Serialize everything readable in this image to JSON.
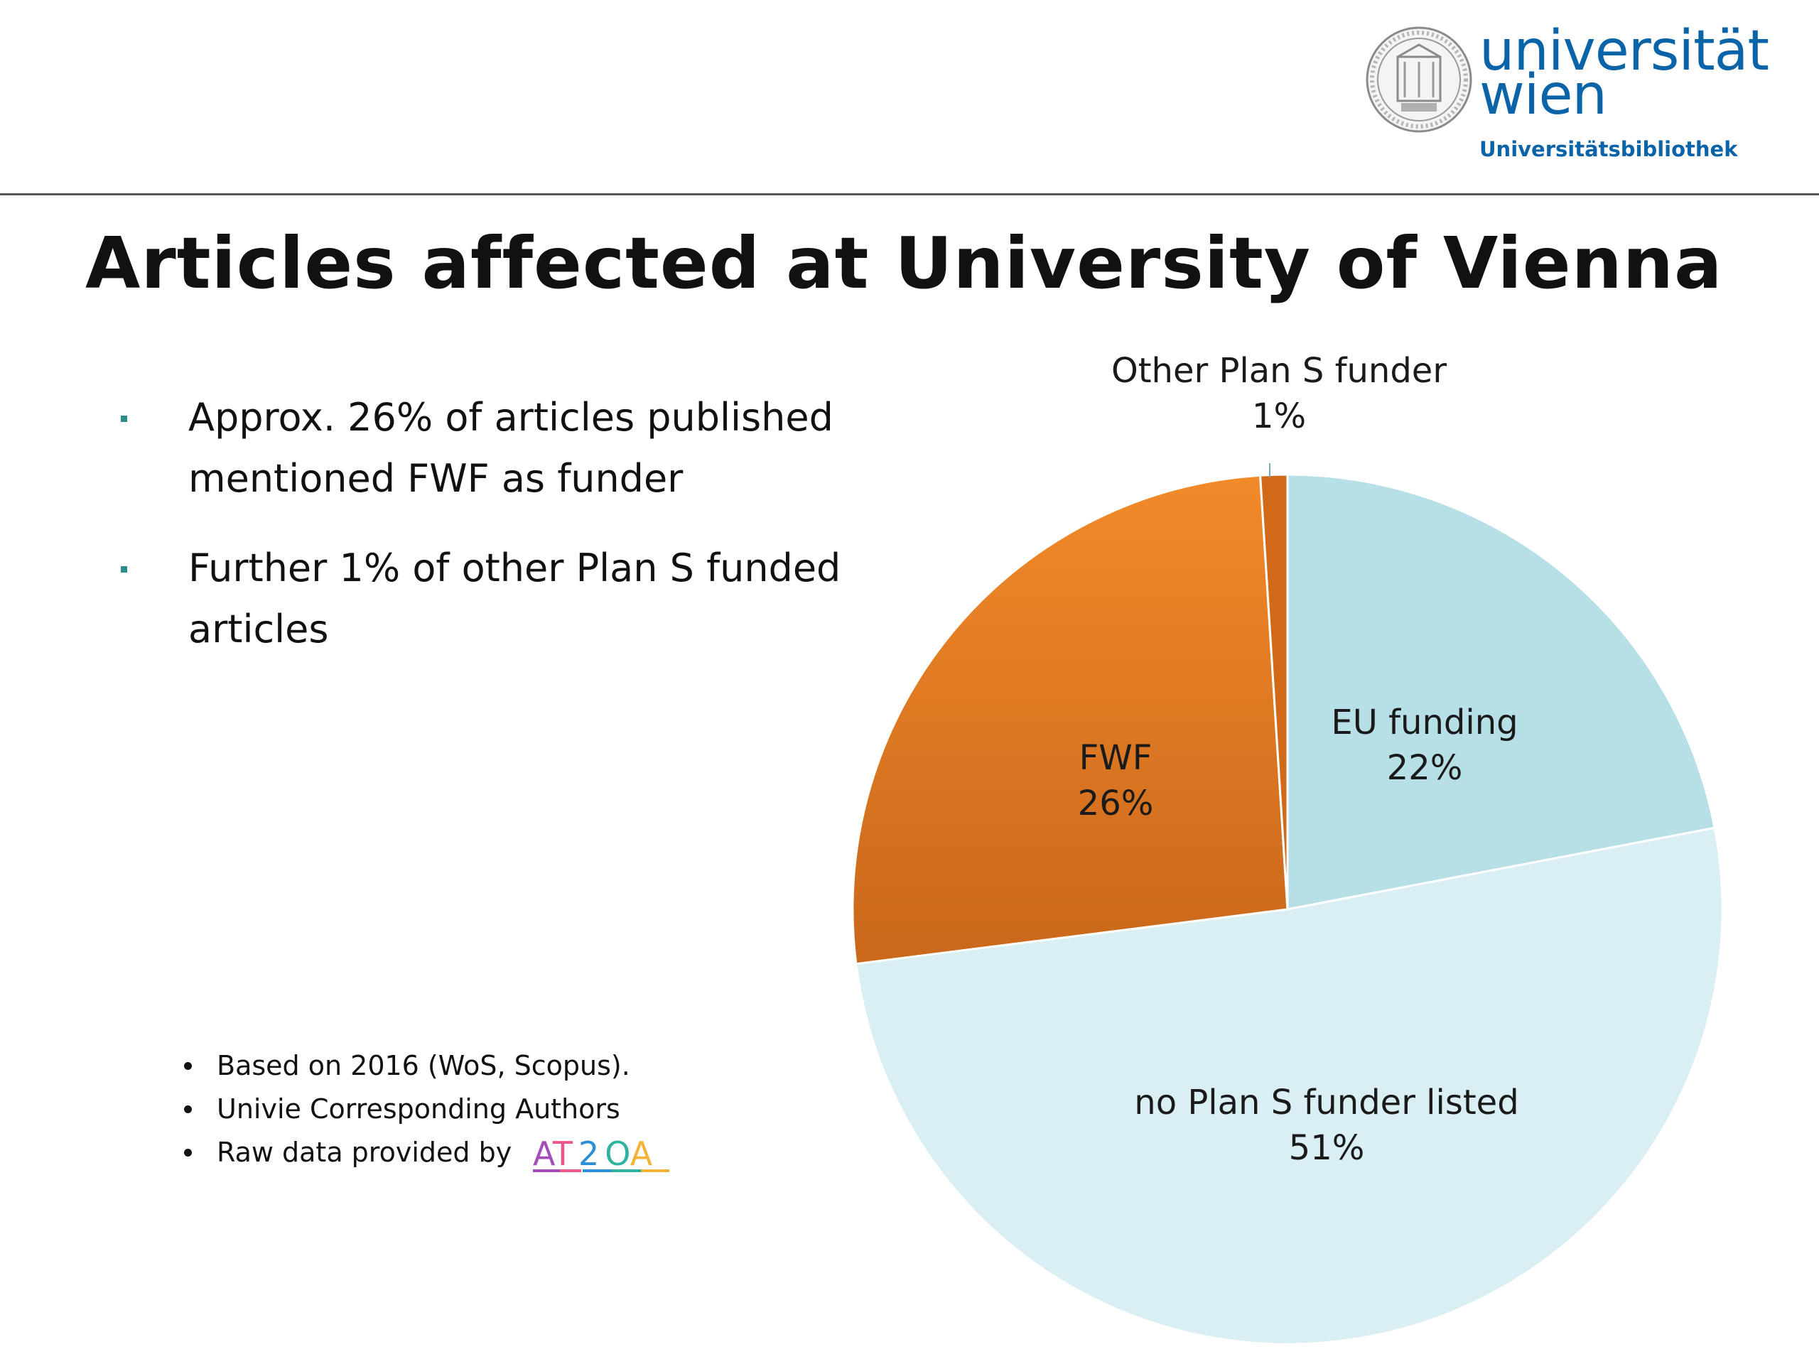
{
  "header": {
    "logo": {
      "word1": "universität",
      "word2": "wien",
      "subtitle": "Universitätsbibliothek",
      "color": "#0b63a8"
    }
  },
  "slide": {
    "title": "Articles affected at University of Vienna",
    "bullets": [
      "Approx. 26% of articles published mentioned FWF as funder",
      "Further 1% of other Plan S funded articles"
    ],
    "notes": [
      "Based on 2016 (WoS, Scopus).",
      "Univie Corresponding Authors",
      "Raw data provided by"
    ],
    "source_logo_text": "AT2OA"
  },
  "chart_data": {
    "type": "pie",
    "start": "12 o'clock, clockwise",
    "slices": [
      {
        "name": "EU funding",
        "label": "22%",
        "value": 22,
        "color": "#b7dfe6"
      },
      {
        "name": "no Plan S funder listed",
        "label": "51%",
        "value": 51,
        "color": "#d9eff3"
      },
      {
        "name": "FWF",
        "label": "26%",
        "value": 26,
        "color": "#e57c22"
      },
      {
        "name": "Other Plan S funder",
        "label": "1%",
        "value": 1,
        "color": "#d06a18"
      }
    ]
  }
}
